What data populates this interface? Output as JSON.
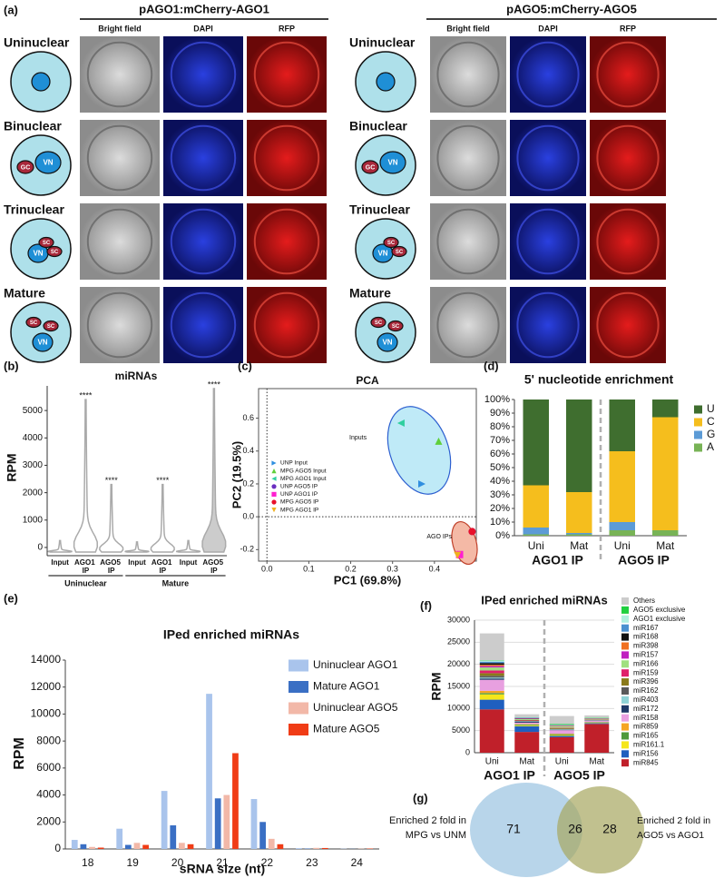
{
  "panel_a": {
    "label": "(a)",
    "stages": [
      "Uninuclear",
      "Binuclear",
      "Trinuclear",
      "Mature"
    ],
    "cell_labels": {
      "gc": "GC",
      "vn": "VN",
      "sc": "SC"
    },
    "constructs": [
      {
        "title": "pAGO1:mCherry-AGO1",
        "channels": [
          "Bright field",
          "DAPI",
          "RFP"
        ]
      },
      {
        "title": "pAGO5:mCherry-AGO5",
        "channels": [
          "Bright field",
          "DAPI",
          "RFP"
        ]
      }
    ]
  },
  "chart_data": [
    {
      "panel": "(b)",
      "type": "violin",
      "title": "miRNAs",
      "y_label": "RPM",
      "ylim": [
        -300,
        5900
      ],
      "yticks": [
        0,
        1000,
        2000,
        3000,
        4000,
        5000
      ],
      "stroke": "#aaaaaa",
      "groups": [
        {
          "name": "Uninuclear",
          "categories": [
            "Input",
            "AGO1 IP",
            "AGO5 IP"
          ],
          "values": [
            250,
            5400,
            2300
          ],
          "annotations": [
            null,
            "****",
            "****"
          ],
          "colors": [
            "#ffffff",
            "#ffffff",
            "#ffffff"
          ]
        },
        {
          "name": "Mature",
          "categories": [
            "Input",
            "AGO1 IP",
            "Input",
            "AGO5 IP"
          ],
          "values": [
            200,
            2300,
            250,
            5800
          ],
          "annotations": [
            null,
            "****",
            null,
            "****"
          ],
          "colors": [
            "#ffffff",
            "#ffffff",
            "#ffffff",
            "#cccccc"
          ]
        }
      ]
    },
    {
      "panel": "(c)",
      "type": "scatter",
      "title": "PCA",
      "x_label": "PC1 (69.8%)",
      "y_label": "PC2 (19.5%)",
      "xlim": [
        -0.02,
        0.5
      ],
      "ylim": [
        -0.27,
        0.78
      ],
      "xticks": [
        {
          "value": 0,
          "label": "0.0"
        },
        0.1,
        0.2,
        0.3,
        0.4
      ],
      "yticks": [
        -0.2,
        {
          "value": 0,
          "label": "0.0"
        },
        0.2,
        0.4,
        0.6
      ],
      "zero_lines": true,
      "legend": "center left",
      "annotations": [
        "Inputs",
        "AGO IPs"
      ],
      "series": [
        {
          "name": "UNP Input",
          "color": "#2f8fe0",
          "marker": "triangle-right",
          "x": [
            0.37
          ],
          "values": [
            0.2
          ]
        },
        {
          "name": "MPG AGO5 Input",
          "color": "#5fcf3a",
          "marker": "triangle-up",
          "x": [
            0.41
          ],
          "values": [
            0.46
          ]
        },
        {
          "name": "MPG AGO1 Input",
          "color": "#2fcf9f",
          "marker": "triangle-left",
          "x": [
            0.32
          ],
          "values": [
            0.57
          ]
        },
        {
          "name": "UNP AGO5 IP",
          "color": "#6a2fc0",
          "marker": "circle",
          "x": [
            0.49
          ],
          "values": [
            -0.09
          ]
        },
        {
          "name": "UNP AGO1 IP",
          "color": "#ff1fd0",
          "marker": "square",
          "x": [
            0.46
          ],
          "values": [
            -0.23
          ]
        },
        {
          "name": "MPG AGO5 IP",
          "color": "#e8102a",
          "marker": "circle",
          "x": [
            0.49
          ],
          "values": [
            -0.09
          ]
        },
        {
          "name": "MPG AGO1 IP",
          "color": "#f0b020",
          "marker": "triangle-down",
          "x": [
            0.455
          ],
          "values": [
            -0.235
          ]
        }
      ]
    },
    {
      "panel": "(d)",
      "type": "bar",
      "stacked": true,
      "title": "5' nucleotide enrichment",
      "ylim": [
        0,
        100
      ],
      "yticks": [
        {
          "value": 0,
          "label": "0%"
        },
        {
          "value": 10,
          "label": "10%"
        },
        {
          "value": 20,
          "label": "20%"
        },
        {
          "value": 30,
          "label": "30%"
        },
        {
          "value": 40,
          "label": "40%"
        },
        {
          "value": 50,
          "label": "50%"
        },
        {
          "value": 60,
          "label": "60%"
        },
        {
          "value": 70,
          "label": "70%"
        },
        {
          "value": 80,
          "label": "80%"
        },
        {
          "value": 90,
          "label": "90%"
        },
        {
          "value": 100,
          "label": "100%"
        }
      ],
      "groups": [
        {
          "name": "AGO1 IP",
          "categories": [
            "Uni",
            "Mat"
          ]
        },
        {
          "name": "AGO5 IP",
          "categories": [
            "Uni",
            "Mat"
          ]
        }
      ],
      "group_separator": true,
      "grid": false,
      "legend": "right",
      "series": [
        {
          "name": "A",
          "color": "#78b356",
          "values": [
            1,
            1,
            4,
            4
          ]
        },
        {
          "name": "G",
          "color": "#5c9bd6",
          "values": [
            5,
            1,
            6,
            0
          ]
        },
        {
          "name": "C",
          "color": "#f5be1d",
          "values": [
            31,
            30,
            52,
            83
          ]
        },
        {
          "name": "U",
          "color": "#3f6e2f",
          "values": [
            63,
            68,
            38,
            13
          ]
        }
      ]
    },
    {
      "panel": "(e)",
      "type": "bar",
      "title": "IPed enriched miRNAs",
      "x_label": "sRNA size (nt)",
      "y_label": "RPM",
      "categories": [
        "18",
        "19",
        "20",
        "21",
        "22",
        "23",
        "24"
      ],
      "ylim": [
        0,
        14000
      ],
      "yticks": [
        0,
        2000,
        4000,
        6000,
        8000,
        10000,
        12000,
        14000
      ],
      "grid": false,
      "legend": "upper right",
      "series": [
        {
          "name": "Uninuclear AGO1",
          "color": "#a9c4ec",
          "values": [
            670,
            1500,
            4300,
            11500,
            3700,
            60,
            20
          ]
        },
        {
          "name": "Mature AGO1",
          "color": "#3a6fc4",
          "values": [
            350,
            300,
            1750,
            3750,
            2000,
            30,
            10
          ]
        },
        {
          "name": "Uninuclear AGO5",
          "color": "#f2b8a8",
          "values": [
            150,
            450,
            450,
            4000,
            750,
            80,
            20
          ]
        },
        {
          "name": "Mature AGO5",
          "color": "#f03c16",
          "values": [
            100,
            300,
            350,
            7100,
            350,
            70,
            30
          ]
        }
      ]
    },
    {
      "panel": "(f)",
      "type": "bar",
      "stacked": true,
      "title": "IPed enriched miRNAs",
      "y_label": "RPM",
      "ylim": [
        0,
        30000
      ],
      "yticks": [
        0,
        5000,
        10000,
        15000,
        20000,
        25000,
        30000
      ],
      "grid": true,
      "legend": "right",
      "groups": [
        {
          "name": "AGO1 IP",
          "categories": [
            "Uni",
            "Mat"
          ]
        },
        {
          "name": "AGO5 IP",
          "categories": [
            "Uni",
            "Mat"
          ]
        }
      ],
      "group_separator": true,
      "series": [
        {
          "name": "miR845",
          "color": "#c0202a",
          "values": [
            9800,
            4700,
            3500,
            6500
          ]
        },
        {
          "name": "miR156",
          "color": "#1f5fbf",
          "values": [
            2200,
            1300,
            300,
            200
          ]
        },
        {
          "name": "miR161.1",
          "color": "#f5e61a",
          "values": [
            1200,
            200,
            200,
            100
          ]
        },
        {
          "name": "miR165",
          "color": "#4e9a3b",
          "values": [
            300,
            200,
            200,
            100
          ]
        },
        {
          "name": "miR859",
          "color": "#f5a623",
          "values": [
            500,
            100,
            100,
            50
          ]
        },
        {
          "name": "miR158",
          "color": "#e8a0e0",
          "values": [
            2500,
            300,
            800,
            300
          ]
        },
        {
          "name": "miR172",
          "color": "#1f3a68",
          "values": [
            300,
            200,
            100,
            50
          ]
        },
        {
          "name": "miR403",
          "color": "#8fd3d6",
          "values": [
            200,
            100,
            100,
            50
          ]
        },
        {
          "name": "miR162",
          "color": "#5a5a5a",
          "values": [
            400,
            100,
            100,
            50
          ]
        },
        {
          "name": "miR396",
          "color": "#8a7a1a",
          "values": [
            600,
            100,
            200,
            50
          ]
        },
        {
          "name": "miR159",
          "color": "#e0206a",
          "values": [
            600,
            100,
            100,
            50
          ]
        },
        {
          "name": "miR166",
          "color": "#a0e080",
          "values": [
            700,
            200,
            300,
            100
          ]
        },
        {
          "name": "miR157",
          "color": "#c020c0",
          "values": [
            300,
            100,
            100,
            50
          ]
        },
        {
          "name": "miR398",
          "color": "#f07020",
          "values": [
            300,
            50,
            50,
            50
          ]
        },
        {
          "name": "miR168",
          "color": "#101010",
          "values": [
            400,
            100,
            50,
            50
          ]
        },
        {
          "name": "miR167",
          "color": "#4a90d0",
          "values": [
            300,
            100,
            50,
            50
          ]
        },
        {
          "name": "AGO1 exclusive",
          "color": "#b0f0e0",
          "values": [
            200,
            50,
            50,
            50
          ]
        },
        {
          "name": "AGO5 exclusive",
          "color": "#20d040",
          "values": [
            100,
            50,
            200,
            100
          ]
        },
        {
          "name": "Others",
          "color": "#cccccc",
          "values": [
            6100,
            650,
            1800,
            500
          ]
        }
      ]
    }
  ],
  "panel_g": {
    "label": "(g)",
    "left_label": [
      "Enriched 2 fold in",
      "MPG vs UNM"
    ],
    "right_label": [
      "Enriched 2 fold in",
      "AGO5 vs AGO1"
    ],
    "left_only": "71",
    "overlap": "26",
    "right_only": "28"
  }
}
